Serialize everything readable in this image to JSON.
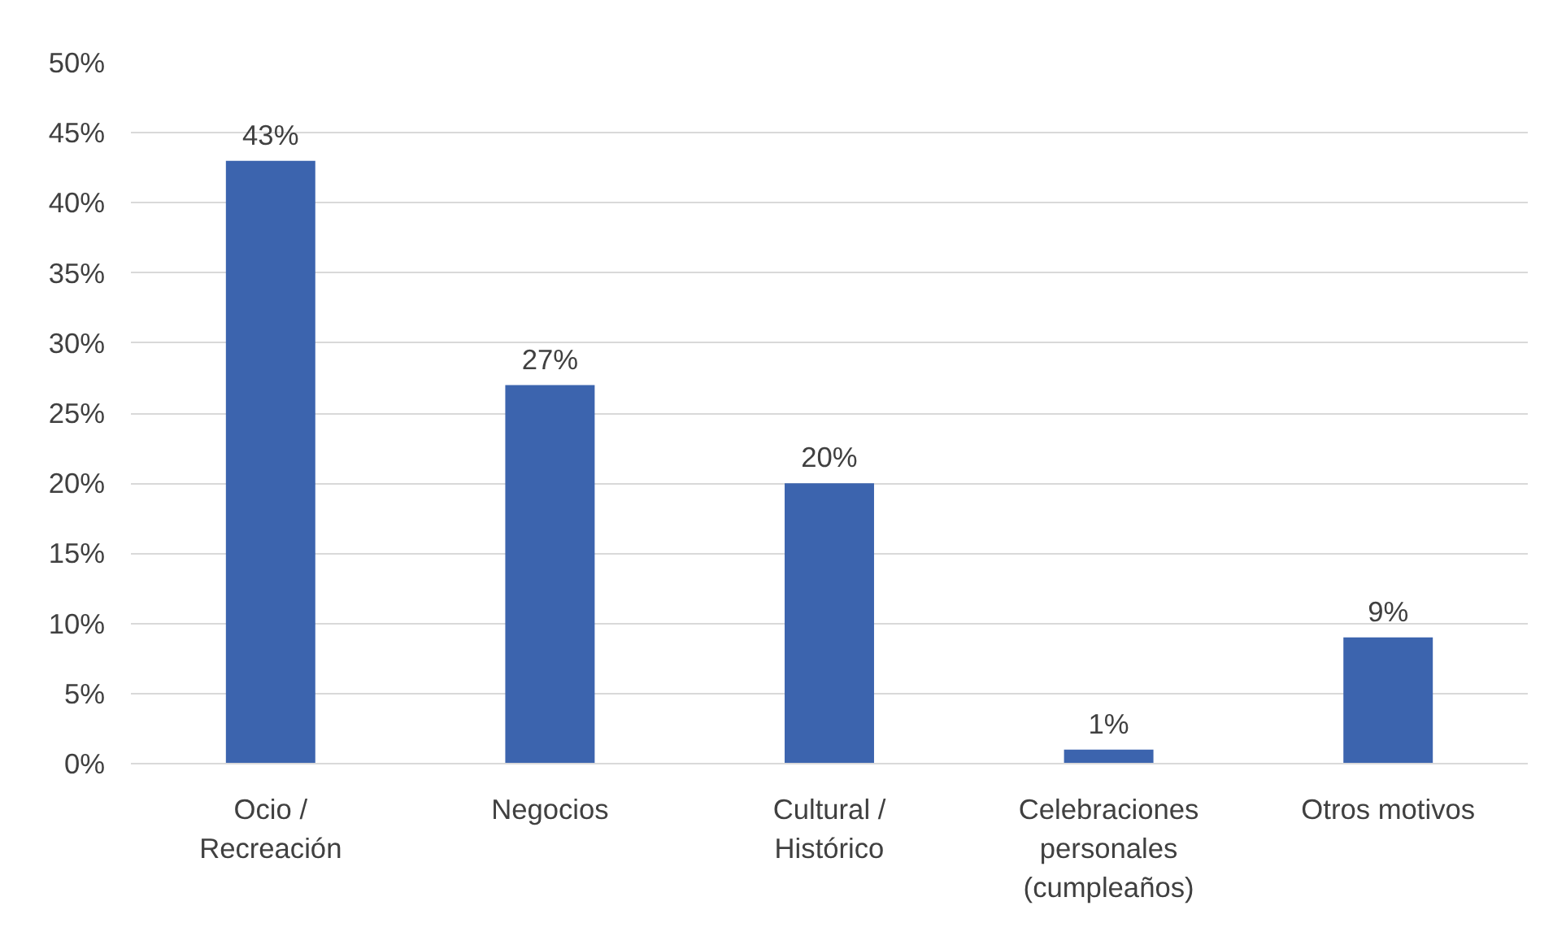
{
  "chart_data": {
    "type": "bar",
    "categories": [
      "Ocio / Recreación",
      "Negocios",
      "Cultural / Histórico",
      "Celebraciones personales (cumpleaños)",
      "Otros motivos"
    ],
    "values": [
      43,
      27,
      20,
      1,
      9
    ],
    "value_labels": [
      "43%",
      "27%",
      "20%",
      "1%",
      "9%"
    ],
    "color": "#3c64ae",
    "ylim": [
      0,
      50
    ],
    "yticks": [
      {
        "value": 0,
        "label": "0%"
      },
      {
        "value": 5,
        "label": "5%"
      },
      {
        "value": 10,
        "label": "10%"
      },
      {
        "value": 15,
        "label": "15%"
      },
      {
        "value": 20,
        "label": "20%"
      },
      {
        "value": 25,
        "label": "25%"
      },
      {
        "value": 30,
        "label": "30%"
      },
      {
        "value": 35,
        "label": "35%"
      },
      {
        "value": 40,
        "label": "40%"
      },
      {
        "value": 45,
        "label": "45%"
      },
      {
        "value": 50,
        "label": "50%"
      }
    ],
    "grid": "y"
  }
}
